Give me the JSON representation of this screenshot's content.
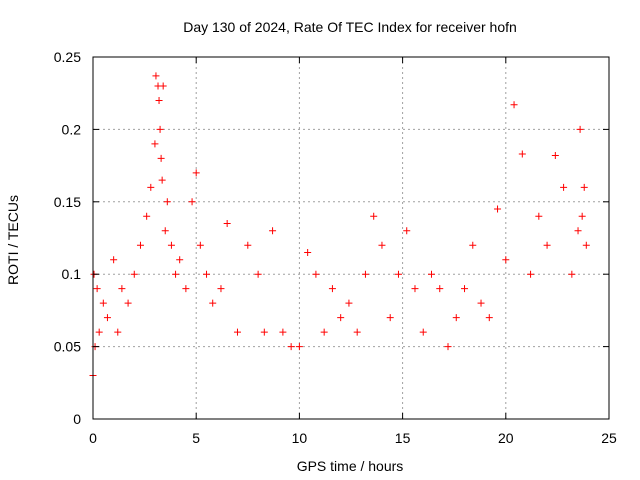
{
  "chart_data": {
    "type": "scatter",
    "title": "Day 130 of 2024, Rate Of TEC Index for receiver hofn",
    "xlabel": "GPS time / hours",
    "ylabel": "ROTI / TECUs",
    "xlim": [
      0,
      25
    ],
    "ylim": [
      0,
      0.25
    ],
    "x_ticks": [
      "0",
      "5",
      "10",
      "15",
      "20",
      "25"
    ],
    "y_ticks": [
      "0",
      "0.05",
      "0.1",
      "0.15",
      "0.2",
      "0.25"
    ],
    "grid": true,
    "legend": "none",
    "marker": "+",
    "color": "#ff0000",
    "series": [
      {
        "x": [
          0.0,
          0.05,
          0.1,
          0.2,
          0.3,
          0.5,
          0.7,
          1.0,
          1.2,
          1.4,
          1.7,
          2.0,
          2.3,
          2.6,
          2.8,
          3.0,
          3.05,
          3.15,
          3.2,
          3.25,
          3.3,
          3.35,
          3.4,
          3.5,
          3.6,
          3.8,
          4.0,
          4.2,
          4.5,
          4.8,
          5.0,
          5.2,
          5.5,
          5.8,
          6.2,
          6.5,
          7.0,
          7.5,
          8.0,
          8.3,
          8.7,
          9.2,
          9.6,
          10.0,
          10.4,
          10.8,
          11.2,
          11.6,
          12.0,
          12.4,
          12.8,
          13.2,
          13.6,
          14.0,
          14.4,
          14.8,
          15.2,
          15.6,
          16.0,
          16.4,
          16.8,
          17.2,
          17.6,
          18.0,
          18.4,
          18.8,
          19.2,
          19.6,
          20.0,
          20.4,
          20.8,
          21.2,
          21.6,
          22.0,
          22.4,
          22.8,
          23.2,
          23.5,
          23.6,
          23.7,
          23.8,
          23.9
        ],
        "y": [
          0.03,
          0.1,
          0.05,
          0.09,
          0.06,
          0.08,
          0.07,
          0.11,
          0.06,
          0.09,
          0.08,
          0.1,
          0.12,
          0.14,
          0.16,
          0.19,
          0.237,
          0.23,
          0.22,
          0.2,
          0.18,
          0.165,
          0.23,
          0.13,
          0.15,
          0.12,
          0.1,
          0.11,
          0.09,
          0.15,
          0.17,
          0.12,
          0.1,
          0.08,
          0.09,
          0.135,
          0.06,
          0.12,
          0.1,
          0.06,
          0.13,
          0.06,
          0.05,
          0.05,
          0.115,
          0.1,
          0.06,
          0.09,
          0.07,
          0.08,
          0.06,
          0.1,
          0.14,
          0.12,
          0.07,
          0.1,
          0.13,
          0.09,
          0.06,
          0.1,
          0.09,
          0.05,
          0.07,
          0.09,
          0.12,
          0.08,
          0.07,
          0.145,
          0.11,
          0.217,
          0.183,
          0.1,
          0.14,
          0.12,
          0.182,
          0.16,
          0.1,
          0.13,
          0.2,
          0.14,
          0.16,
          0.12
        ]
      }
    ]
  }
}
